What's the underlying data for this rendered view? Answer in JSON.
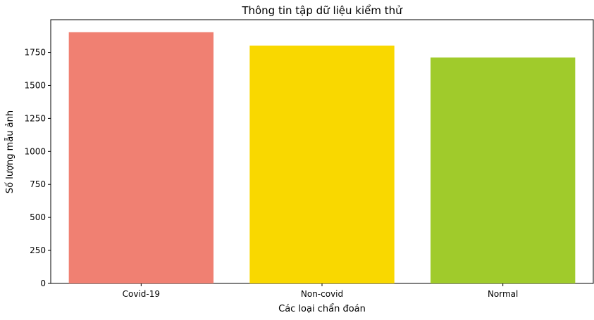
{
  "chart_data": {
    "type": "bar",
    "title": "Thông tin tập dữ liệu kiểm thử",
    "xlabel": "Các loại chẩn đoán",
    "ylabel": "Số lượng mẫu ảnh",
    "categories": [
      "Covid-19",
      "Non-covid",
      "Normal"
    ],
    "values": [
      1903,
      1802,
      1712
    ],
    "colors": [
      "#f08072",
      "#f9d800",
      "#a0cb2b"
    ],
    "ylim": [
      0,
      1998
    ],
    "yticks": [
      0,
      250,
      500,
      750,
      1000,
      1250,
      1500,
      1750
    ],
    "grid": false,
    "legend": "none"
  }
}
